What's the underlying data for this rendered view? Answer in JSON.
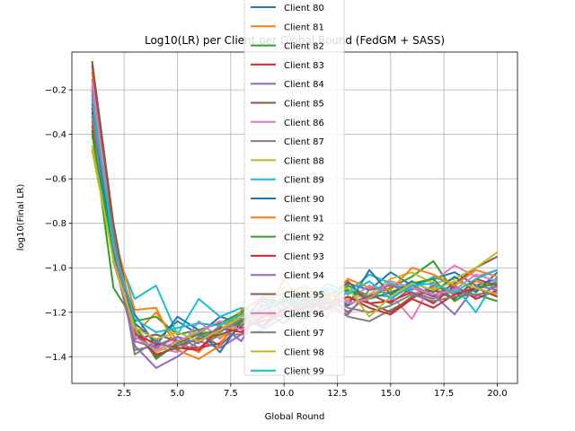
{
  "chart_data": {
    "type": "line",
    "title": "Log10(LR) per Client per Global Round (FedGM + SASS)",
    "xlabel": "Global Round",
    "ylabel": "log10(Final LR)",
    "xlim": [
      0.05,
      20.95
    ],
    "ylim": [
      -1.52,
      -0.03
    ],
    "xticks": [
      2.5,
      5.0,
      7.5,
      10.0,
      12.5,
      15.0,
      17.5,
      20.0
    ],
    "xtick_labels": [
      "2.5",
      "5.0",
      "7.5",
      "10.0",
      "12.5",
      "15.0",
      "17.5",
      "20.0"
    ],
    "yticks": [
      -1.4,
      -1.2,
      -1.0,
      -0.8,
      -0.6,
      -0.4,
      -0.2
    ],
    "ytick_labels": [
      "−1.4",
      "−1.2",
      "−1.0",
      "−0.8",
      "−0.6",
      "−0.4",
      "−0.2"
    ],
    "grid": true,
    "legend_position": "top-center",
    "x": [
      1,
      2,
      3,
      4,
      5,
      6,
      7,
      8,
      9,
      10,
      11,
      12,
      13,
      14,
      15,
      16,
      17,
      18,
      19,
      20
    ],
    "series": [
      {
        "name": "Client 80",
        "color": "#1f77b4",
        "values": [
          -0.3,
          -0.92,
          -1.25,
          -1.33,
          -1.24,
          -1.3,
          -1.22,
          -1.25,
          -1.17,
          -1.14,
          -1.2,
          -1.13,
          -1.07,
          -1.1,
          -1.02,
          -1.08,
          -1.05,
          -1.02,
          -1.08,
          -1.05
        ]
      },
      {
        "name": "Client 81",
        "color": "#ff7f0e",
        "values": [
          -0.12,
          -0.88,
          -1.3,
          -1.2,
          -1.33,
          -1.38,
          -1.28,
          -1.2,
          -1.24,
          -1.05,
          -1.17,
          -1.22,
          -1.1,
          -1.13,
          -1.07,
          -1.12,
          -1.09,
          -1.14,
          -1.06,
          -1.09
        ]
      },
      {
        "name": "Client 82",
        "color": "#2ca02c",
        "values": [
          -0.38,
          -1.09,
          -1.24,
          -1.22,
          -1.3,
          -1.28,
          -1.25,
          -1.2,
          -1.13,
          -1.16,
          -1.11,
          -1.18,
          -1.08,
          -1.13,
          -1.09,
          -1.04,
          -0.97,
          -1.11,
          -1.12,
          -1.15
        ]
      },
      {
        "name": "Client 83",
        "color": "#d62728",
        "values": [
          -0.36,
          -0.86,
          -1.28,
          -1.39,
          -1.36,
          -1.36,
          -1.34,
          -1.23,
          -1.26,
          -1.18,
          -1.14,
          -1.19,
          -1.13,
          -1.16,
          -1.15,
          -1.11,
          -1.16,
          -1.08,
          -1.14,
          -1.1
        ]
      },
      {
        "name": "Client 84",
        "color": "#9467bd",
        "values": [
          -0.32,
          -0.95,
          -1.35,
          -1.45,
          -1.4,
          -1.33,
          -1.36,
          -1.3,
          -1.28,
          -1.22,
          -1.23,
          -1.16,
          -1.17,
          -1.12,
          -1.13,
          -1.08,
          -1.12,
          -1.21,
          -1.08,
          -1.1
        ]
      },
      {
        "name": "Client 85",
        "color": "#8c564b",
        "values": [
          -0.07,
          -0.8,
          -1.32,
          -1.3,
          -1.33,
          -1.3,
          -1.35,
          -1.26,
          -1.2,
          -1.25,
          -1.16,
          -1.13,
          -1.2,
          -1.12,
          -1.16,
          -1.09,
          -1.13,
          -1.07,
          -1.0,
          -0.95
        ]
      },
      {
        "name": "Client 86",
        "color": "#e377c2",
        "values": [
          -0.18,
          -0.98,
          -1.27,
          -1.36,
          -1.38,
          -1.24,
          -1.32,
          -1.22,
          -1.18,
          -1.15,
          -1.21,
          -1.1,
          -1.15,
          -1.08,
          -1.12,
          -1.23,
          -1.06,
          -0.99,
          -1.04,
          -1.01
        ]
      },
      {
        "name": "Client 87",
        "color": "#7f7f7f",
        "values": [
          -0.34,
          -0.83,
          -1.37,
          -1.35,
          -1.31,
          -1.36,
          -1.3,
          -1.3,
          -1.2,
          -1.22,
          -1.17,
          -1.15,
          -1.22,
          -1.24,
          -1.19,
          -1.14,
          -1.08,
          -1.12,
          -1.1,
          -1.06
        ]
      },
      {
        "name": "Client 88",
        "color": "#bcbd22",
        "values": [
          -0.47,
          -0.96,
          -1.28,
          -1.38,
          -1.34,
          -1.28,
          -1.31,
          -1.25,
          -1.21,
          -1.18,
          -1.13,
          -1.11,
          -1.14,
          -1.12,
          -1.05,
          -1.02,
          -1.07,
          -1.05,
          -1.0,
          -0.93
        ]
      },
      {
        "name": "Client 89",
        "color": "#17becf",
        "values": [
          -0.22,
          -0.9,
          -1.14,
          -1.08,
          -1.3,
          -1.14,
          -1.22,
          -1.18,
          -1.22,
          -1.14,
          -1.18,
          -1.07,
          -1.11,
          -1.03,
          -1.07,
          -1.1,
          -1.04,
          -1.08,
          -1.2,
          -1.04
        ]
      },
      {
        "name": "Client 90",
        "color": "#1f77b4",
        "values": [
          -0.28,
          -0.93,
          -1.21,
          -1.35,
          -1.22,
          -1.28,
          -1.38,
          -1.24,
          -1.14,
          -1.17,
          -1.23,
          -1.1,
          -1.17,
          -1.01,
          -1.12,
          -1.06,
          -1.11,
          -1.04,
          -1.11,
          -1.02
        ]
      },
      {
        "name": "Client 91",
        "color": "#ff7f0e",
        "values": [
          -0.15,
          -0.85,
          -1.19,
          -1.18,
          -1.37,
          -1.41,
          -1.35,
          -1.19,
          -1.14,
          -1.12,
          -1.08,
          -1.15,
          -1.05,
          -1.09,
          -1.1,
          -1.0,
          -1.03,
          -1.08,
          -1.01,
          -1.04
        ]
      },
      {
        "name": "Client 92",
        "color": "#2ca02c",
        "values": [
          -0.4,
          -0.94,
          -1.26,
          -1.41,
          -1.34,
          -1.3,
          -1.28,
          -1.24,
          -1.19,
          -1.15,
          -1.16,
          -1.12,
          -1.1,
          -1.14,
          -1.11,
          -1.07,
          -1.05,
          -1.15,
          -1.09,
          -1.07
        ]
      },
      {
        "name": "Client 93",
        "color": "#d62728",
        "values": [
          -0.26,
          -0.87,
          -1.3,
          -1.34,
          -1.36,
          -1.37,
          -1.27,
          -1.29,
          -1.22,
          -1.2,
          -1.18,
          -1.16,
          -1.13,
          -1.18,
          -1.21,
          -1.14,
          -1.18,
          -1.12,
          -1.09,
          -1.13
        ]
      },
      {
        "name": "Client 94",
        "color": "#9467bd",
        "values": [
          -0.2,
          -0.91,
          -1.33,
          -1.36,
          -1.31,
          -1.34,
          -1.26,
          -1.33,
          -1.15,
          -1.19,
          -1.12,
          -1.18,
          -1.21,
          -1.1,
          -1.08,
          -1.11,
          -1.14,
          -1.09,
          -1.13,
          -1.08
        ]
      },
      {
        "name": "Client 95",
        "color": "#8c564b",
        "values": [
          -0.09,
          -0.82,
          -1.29,
          -1.4,
          -1.35,
          -1.32,
          -1.3,
          -1.27,
          -1.24,
          -1.21,
          -1.15,
          -1.19,
          -1.06,
          -1.16,
          -1.2,
          -1.13,
          -1.1,
          -1.14,
          -1.05,
          -1.08
        ]
      },
      {
        "name": "Client 96",
        "color": "#e377c2",
        "values": [
          -0.16,
          -0.89,
          -1.31,
          -1.37,
          -1.33,
          -1.29,
          -1.24,
          -1.28,
          -1.2,
          -1.16,
          -1.13,
          -1.1,
          -1.16,
          -1.14,
          -1.06,
          -1.09,
          -1.12,
          -1.1,
          -1.03,
          -1.06
        ]
      },
      {
        "name": "Client 97",
        "color": "#7f7f7f",
        "values": [
          -0.31,
          -0.84,
          -1.39,
          -1.33,
          -1.37,
          -1.31,
          -1.29,
          -1.23,
          -1.27,
          -1.19,
          -1.21,
          -1.14,
          -1.18,
          -1.2,
          -1.17,
          -1.12,
          -1.15,
          -1.13,
          -1.12,
          -1.11
        ]
      },
      {
        "name": "Client 98",
        "color": "#bcbd22",
        "values": [
          -0.45,
          -0.97,
          -1.27,
          -1.32,
          -1.29,
          -1.33,
          -1.28,
          -1.22,
          -1.18,
          -1.14,
          -1.1,
          -1.13,
          -1.09,
          -1.22,
          -1.13,
          -1.07,
          -1.1,
          -1.06,
          -1.09,
          -1.12
        ]
      },
      {
        "name": "Client 99",
        "color": "#17becf",
        "values": [
          -0.24,
          -0.9,
          -1.23,
          -1.29,
          -1.27,
          -1.25,
          -1.26,
          -1.21,
          -1.19,
          -1.13,
          -1.16,
          -1.09,
          -1.12,
          -1.06,
          -1.14,
          -1.08,
          -1.07,
          -1.11,
          -1.05,
          -1.01
        ]
      }
    ]
  }
}
